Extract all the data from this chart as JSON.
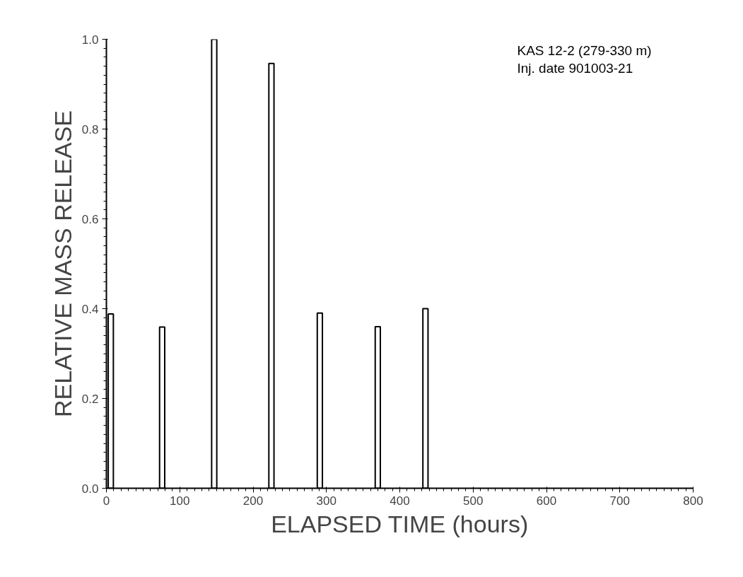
{
  "chart_data": {
    "type": "bar",
    "xlabel": "ELAPSED TIME (hours)",
    "ylabel": "RELATIVE MASS RELEASE",
    "annotations": [
      "KAS 12-2 (279-330 m)",
      "Inj. date 901003-21"
    ],
    "x": [
      6,
      76,
      147,
      225,
      291,
      370,
      435
    ],
    "values": [
      0.388,
      0.359,
      1.0,
      0.946,
      0.39,
      0.36,
      0.4
    ],
    "color": "#000000",
    "xlim": [
      0,
      800
    ],
    "xticks": [
      0,
      100,
      200,
      300,
      400,
      500,
      600,
      700,
      800
    ],
    "ylim": [
      0,
      1.0
    ],
    "yticks": [
      {
        "value": 0,
        "label": "0.0"
      },
      0.2,
      0.4,
      0.6,
      0.8,
      {
        "value": 1,
        "label": "1.0"
      }
    ],
    "grid": false
  }
}
